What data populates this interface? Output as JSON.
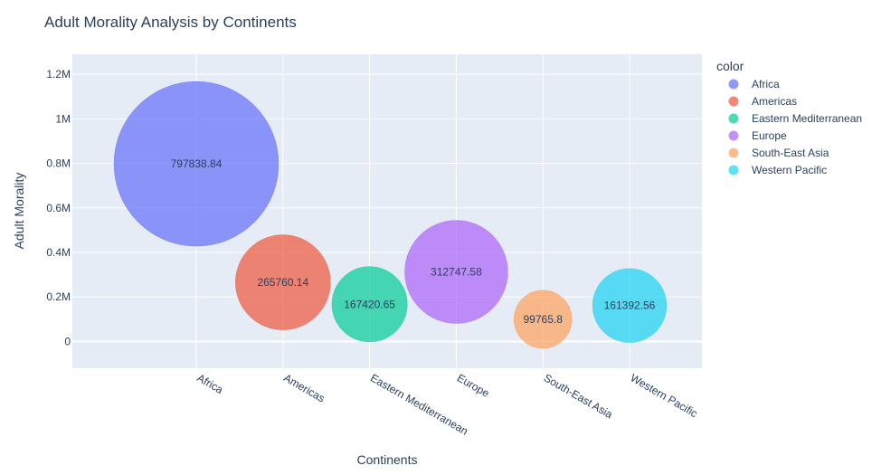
{
  "chart_data": {
    "type": "scatter",
    "title": "Adult Morality Analysis by Continents",
    "xlabel": "Continents",
    "ylabel": "Adult Morality",
    "categories": [
      "Africa",
      "Americas",
      "Eastern Mediterranean",
      "Europe",
      "South-East Asia",
      "Western Pacific"
    ],
    "values": [
      797838.84,
      265760.14,
      167420.65,
      312747.58,
      99765.8,
      161392.56
    ],
    "labels": [
      "797838.84",
      "265760.14",
      "167420.65",
      "312747.58",
      "99765.8",
      "161392.56"
    ],
    "colors": [
      "#636efa",
      "#EF553B",
      "#00cc96",
      "#ab63fa",
      "#FFA15A",
      "#19d3f3"
    ],
    "ylim": [
      -120000,
      1290000
    ],
    "yticks": [
      0,
      200000,
      400000,
      600000,
      800000,
      1000000,
      1200000
    ],
    "ytick_labels": [
      "0",
      "0.2M",
      "0.4M",
      "0.6M",
      "0.8M",
      "1M",
      "1.2M"
    ],
    "grid": true,
    "marker_size_encodes": "values",
    "legend": {
      "title": "color",
      "position": "right",
      "entries": [
        "Africa",
        "Americas",
        "Eastern Mediterranean",
        "Europe",
        "South-East Asia",
        "Western Pacific"
      ]
    }
  }
}
